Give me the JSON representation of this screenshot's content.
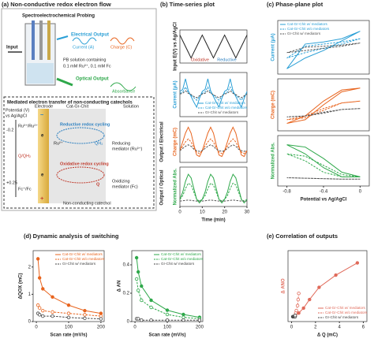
{
  "figure": {
    "titles": [
      "(a) Non-conductive redox electron flow",
      "(b) Time-series plot",
      "(c) Phase-plane plot",
      "(d) Dynamic analysis of switching",
      "(e) Correlation of outputs"
    ],
    "panel_a": {
      "heading": "Spectroelectrochemical Probing",
      "input": "Input",
      "electrical_output": "Electrical Output",
      "current": "Current (A)",
      "charge": "Charge (C)",
      "solution_1": "PB solution containing",
      "solution_2": "0.1 mM Ru³⁺, 0.1 mM Fc",
      "optical_output": "Optical Output",
      "absorbance": "Absorbance",
      "box_title": "Mediated electron transfer of non-conducting catechols",
      "potential_1": "Potential (V)",
      "potential_2": "vs Ag/AgCl",
      "electrode": "Electrode",
      "film": "Cat-Gr-Chit",
      "solution": "Solution",
      "level_1": "-0.2",
      "level_2": "+0.25",
      "couple_1": "Ru³⁺/Ru²⁺",
      "couple_2": "Q/QH₂",
      "couple_3": "Fc⁺/Fc",
      "reductive": "Reductive redox cycling",
      "oxidative": "Oxidative redox cycling",
      "ru2": "Ru²⁺",
      "qh2": "QH₂",
      "q": "Q",
      "reducing_1": "Reducing",
      "reducing_2": "mediator (Ru³⁺)",
      "oxidizing_1": "Oxidizing",
      "oxidizing_2": "mediator (Fc)",
      "catechol": "Non-conducting catechol",
      "e1": "e",
      "e2": "e",
      "minus": "−",
      "plus": "+"
    },
    "side_labels": [
      "Output / Electrical",
      "Output / Optical"
    ]
  },
  "chart_data": [
    {
      "type": "line",
      "ylabel": "Input E(V) vs Ag/AgCl",
      "annotations": [
        "Oxidative",
        "Reductive"
      ],
      "x": [
        0,
        1.25,
        2.5,
        3.75,
        5,
        6.25,
        7.5,
        8.75,
        10,
        11.25,
        12.5,
        13.75,
        15,
        16.25,
        17.5,
        18.75,
        20,
        21.25,
        22.5,
        23.75,
        25,
        26.25,
        27.5,
        28.75,
        30
      ],
      "xlim": [
        0,
        30
      ],
      "ylim": [
        -0.6,
        0.7
      ],
      "series": [
        {
          "color": "#222",
          "values": [
            0.5,
            0.275,
            0.05,
            -0.175,
            -0.4,
            -0.175,
            0.05,
            0.275,
            0.5,
            0.275,
            0.05,
            -0.175,
            -0.4,
            -0.175,
            0.05,
            0.275,
            0.5,
            0.275,
            0.05,
            -0.175,
            -0.4,
            -0.175,
            0.05,
            0.275,
            0.5
          ]
        }
      ]
    },
    {
      "type": "line",
      "ylabel": "Current (μA)",
      "legend": "lower right",
      "x": [
        0,
        1.25,
        2.5,
        3.75,
        5,
        6.25,
        7.5,
        8.75,
        10,
        11.25,
        12.5,
        13.75,
        15,
        16.25,
        17.5,
        18.75,
        20,
        21.25,
        22.5,
        23.75,
        25,
        26.25,
        27.5,
        28.75,
        30
      ],
      "xlim": [
        0,
        30
      ],
      "ylim": [
        -3.5,
        3.5
      ],
      "series": [
        {
          "name": "Cat-Gr-Chit w/ mediators",
          "color": "#2a9fd6",
          "values": [
            0.5,
            0.8,
            2.5,
            0.6,
            -0.3,
            -1.2,
            -2,
            -0.6,
            0.5,
            0.8,
            2.5,
            0.6,
            -0.3,
            -1.2,
            -2,
            -0.6,
            0.5,
            0.8,
            2.5,
            0.6,
            -0.3,
            -1.2,
            -2,
            -0.6,
            0.5
          ]
        },
        {
          "name": "Cat-Gr-Chit w/o mediators",
          "color": "#2a9fd6",
          "dash": true,
          "values": [
            0.2,
            0.4,
            1.2,
            0.3,
            -0.1,
            -0.5,
            -0.9,
            -0.3,
            0.2,
            0.4,
            1.2,
            0.3,
            -0.1,
            -0.5,
            -0.9,
            -0.3,
            0.2,
            0.4,
            1.2,
            0.3,
            -0.1,
            -0.5,
            -0.9,
            -0.3,
            0.2
          ]
        },
        {
          "name": "Gr-Chit w/ mediators",
          "color": "#555",
          "dash": true,
          "values": [
            0.1,
            0.2,
            0.6,
            0.2,
            0,
            -0.3,
            -0.5,
            -0.2,
            0.1,
            0.2,
            0.6,
            0.2,
            0,
            -0.3,
            -0.5,
            -0.2,
            0.1,
            0.2,
            0.6,
            0.2,
            0,
            -0.3,
            -0.5,
            -0.2,
            0.1
          ]
        }
      ]
    },
    {
      "type": "line",
      "ylabel": "Charge (mC)",
      "x": [
        0,
        1.25,
        2.5,
        3.75,
        5,
        6.25,
        7.5,
        8.75,
        10,
        11.25,
        12.5,
        13.75,
        15,
        16.25,
        17.5,
        18.75,
        20,
        21.25,
        22.5,
        23.75,
        25,
        26.25,
        27.5,
        28.75,
        30
      ],
      "xlim": [
        0,
        30
      ],
      "ylim": [
        -0.8,
        2
      ],
      "series": [
        {
          "color": "#e8641e",
          "values": [
            0,
            0.6,
            1.2,
            1.6,
            1.2,
            0.4,
            -0.3,
            -0.4,
            0,
            0.6,
            1.2,
            1.6,
            1.2,
            0.4,
            -0.3,
            -0.4,
            0,
            0.6,
            1.2,
            1.6,
            1.2,
            0.4,
            -0.3,
            -0.4,
            0
          ]
        },
        {
          "color": "#e8641e",
          "dash": true,
          "values": [
            0,
            0.3,
            0.6,
            0.8,
            0.6,
            0.2,
            -0.1,
            -0.2,
            0,
            0.3,
            0.6,
            0.8,
            0.6,
            0.2,
            -0.1,
            -0.2,
            0,
            0.3,
            0.6,
            0.8,
            0.6,
            0.2,
            -0.1,
            -0.2,
            0
          ]
        },
        {
          "color": "#555",
          "dash": true,
          "values": [
            0,
            0.15,
            0.3,
            0.4,
            0.3,
            0.1,
            0,
            -0.05,
            0,
            0.15,
            0.3,
            0.4,
            0.3,
            0.1,
            0,
            -0.05,
            0,
            0.15,
            0.3,
            0.4,
            0.3,
            0.1,
            0,
            -0.05,
            0
          ]
        }
      ]
    },
    {
      "type": "line",
      "ylabel": "Normalized Abs.",
      "xlabel": "Time (min)",
      "xticks": [
        0,
        10,
        20,
        30
      ],
      "x": [
        0,
        1.25,
        2.5,
        3.75,
        5,
        6.25,
        7.5,
        8.75,
        10,
        11.25,
        12.5,
        13.75,
        15,
        16.25,
        17.5,
        18.75,
        20,
        21.25,
        22.5,
        23.75,
        25,
        26.25,
        27.5,
        28.75,
        30
      ],
      "xlim": [
        0,
        30
      ],
      "ylim": [
        -0.1,
        1
      ],
      "series": [
        {
          "color": "#2ea84a",
          "values": [
            0.1,
            0.3,
            0.6,
            0.8,
            0.7,
            0.4,
            0.1,
            0,
            0.1,
            0.3,
            0.6,
            0.8,
            0.7,
            0.4,
            0.1,
            0,
            0.1,
            0.3,
            0.6,
            0.8,
            0.7,
            0.4,
            0.1,
            0,
            0.1
          ]
        },
        {
          "color": "#2ea84a",
          "dash": true,
          "values": [
            0.1,
            0.2,
            0.4,
            0.55,
            0.5,
            0.3,
            0.1,
            0.05,
            0.1,
            0.2,
            0.4,
            0.55,
            0.5,
            0.3,
            0.1,
            0.05,
            0.1,
            0.2,
            0.4,
            0.55,
            0.5,
            0.3,
            0.1,
            0.05,
            0.1
          ]
        },
        {
          "color": "#555",
          "dash": true,
          "values": [
            0.05,
            0.06,
            0.07,
            0.08,
            0.07,
            0.06,
            0.05,
            0.05,
            0.05,
            0.06,
            0.07,
            0.08,
            0.07,
            0.06,
            0.05,
            0.05,
            0.05,
            0.06,
            0.07,
            0.08,
            0.07,
            0.06,
            0.05,
            0.05,
            0.05
          ]
        }
      ]
    },
    {
      "type": "line",
      "ylabel": "Current (μA)",
      "legend": "upper left",
      "x": [
        0,
        -0.2,
        -0.4,
        -0.6,
        -0.8,
        -0.6,
        -0.4,
        -0.2,
        0
      ],
      "xlim": [
        -0.9,
        0.1
      ],
      "ylim": [
        -2.5,
        2.5
      ],
      "series": [
        {
          "name": "Cat-Gr-Chit w/ mediators",
          "color": "#2a9fd6",
          "values": [
            1.5,
            0.8,
            0.5,
            0.3,
            -2,
            -1,
            -0.3,
            0.6,
            1.5
          ]
        },
        {
          "name": "Cat-Gr-Chit w/o mediators",
          "color": "#2a9fd6",
          "dash": true,
          "values": [
            0.8,
            0.5,
            0.3,
            0.1,
            -1,
            -0.5,
            -0.1,
            0.3,
            0.8
          ]
        },
        {
          "name": "Gr-Chit w/ mediators",
          "color": "#555",
          "dash": true,
          "values": [
            0.4,
            0.2,
            0.1,
            0,
            -0.5,
            -0.3,
            -0.1,
            0.1,
            0.4
          ]
        }
      ]
    },
    {
      "type": "line",
      "ylabel": "Charge (mC)",
      "x": [
        0,
        -0.2,
        -0.4,
        -0.6,
        -0.8,
        -0.6,
        -0.4,
        -0.2,
        0
      ],
      "xlim": [
        -0.9,
        0.1
      ],
      "ylim": [
        -0.8,
        2
      ],
      "series": [
        {
          "color": "#e8641e",
          "values": [
            1.5,
            1.3,
            0.6,
            -0.2,
            -0.4,
            0,
            0.8,
            1.4,
            1.5
          ]
        },
        {
          "color": "#e8641e",
          "dash": true,
          "values": [
            0.8,
            0.7,
            0.3,
            -0.1,
            -0.2,
            0,
            0.4,
            0.7,
            0.8
          ]
        },
        {
          "color": "#555",
          "dash": true,
          "values": [
            0.4,
            0.35,
            0.15,
            0,
            -0.05,
            0,
            0.2,
            0.35,
            0.4
          ]
        }
      ]
    },
    {
      "type": "line",
      "ylabel": "Normalized Abs.",
      "xlabel": "Potential vs Ag/AgCl",
      "xticks": [
        -0.8,
        -0.4,
        0
      ],
      "x": [
        0,
        -0.2,
        -0.4,
        -0.6,
        -0.8,
        -0.6,
        -0.4,
        -0.2,
        0
      ],
      "xlim": [
        -0.9,
        0.1
      ],
      "ylim": [
        -0.1,
        1
      ],
      "series": [
        {
          "color": "#2ea84a",
          "values": [
            0.1,
            0.2,
            0.5,
            0.75,
            0.8,
            0.6,
            0.3,
            0.1,
            0.1
          ]
        },
        {
          "color": "#2ea84a",
          "dash": true,
          "values": [
            0.1,
            0.15,
            0.35,
            0.55,
            0.6,
            0.45,
            0.2,
            0.1,
            0.1
          ]
        },
        {
          "color": "#555",
          "dash": true,
          "values": [
            0.05,
            0.05,
            0.06,
            0.07,
            0.08,
            0.07,
            0.06,
            0.05,
            0.05
          ]
        }
      ]
    },
    {
      "type": "line",
      "markers": true,
      "ylabel": "ΔQOX (mC)",
      "xlabel": "Scan rate (mV/s)",
      "legend": "upper right",
      "x": [
        5,
        10,
        20,
        50,
        100,
        150,
        200
      ],
      "xlim": [
        -10,
        210
      ],
      "xticks": [
        0,
        100,
        200
      ],
      "ylim": [
        0,
        2.6
      ],
      "yticks": [
        0,
        1,
        2
      ],
      "series": [
        {
          "name": "Cat-Gr-Chit w/ mediators",
          "color": "#e8641e",
          "values": [
            2.3,
            1.6,
            1.2,
            0.9,
            0.6,
            0.4,
            0.3
          ]
        },
        {
          "name": "Cat-Gr-Chit w/o mediators",
          "color": "#e8641e",
          "dash": true,
          "values": [
            0.6,
            0.5,
            0.4,
            0.35,
            0.3,
            0.25,
            0.2
          ]
        },
        {
          "name": "Gr-Chit w/ mediators",
          "color": "#444",
          "dash": true,
          "values": [
            0.3,
            0.25,
            0.2,
            0.2,
            0.15,
            0.12,
            0.1
          ]
        }
      ]
    },
    {
      "type": "line",
      "markers": true,
      "ylabel": "Δ AN",
      "xlabel": "Scan rate (mV/s)",
      "legend": "upper right",
      "x": [
        5,
        10,
        20,
        50,
        100,
        150,
        200
      ],
      "xlim": [
        -10,
        210
      ],
      "xticks": [
        0,
        100,
        200
      ],
      "ylim": [
        0,
        0.5
      ],
      "yticks": [
        0,
        0.2,
        0.4
      ],
      "series": [
        {
          "name": "Cat-Gr-Chit w/ mediators",
          "color": "#2ea84a",
          "values": [
            0.45,
            0.35,
            0.25,
            0.15,
            0.08,
            0.05,
            0.03
          ]
        },
        {
          "name": "Cat-Gr-Chit w/o mediators",
          "color": "#2ea84a",
          "dash": true,
          "values": [
            0.3,
            0.22,
            0.15,
            0.1,
            0.05,
            0.03,
            0.02
          ]
        },
        {
          "name": "Gr-Chit w/ mediators",
          "color": "#444",
          "dash": true,
          "values": [
            0.02,
            0.02,
            0.01,
            0.01,
            0.01,
            0.01,
            0.01
          ]
        }
      ]
    },
    {
      "type": "line",
      "markers": true,
      "ylabel": "Δ ANO",
      "xlabel": "Δ Q (mC)",
      "legend": "lower right",
      "xlim": [
        -0.3,
        6.3
      ],
      "xticks": [
        0,
        2,
        4,
        6
      ],
      "ylim": [
        -0.03,
        0.55
      ],
      "series": [
        {
          "name": "Cat-Gr-Chit w/ mediators",
          "color": "#e06a5a",
          "x": [
            0.3,
            0.6,
            1,
            1.5,
            2.3,
            3.7,
            5.5
          ],
          "values": [
            0.02,
            0.04,
            0.08,
            0.15,
            0.25,
            0.35,
            0.45
          ]
        },
        {
          "name": "Cat-Gr-Chit w/o mediators",
          "color": "#e06a5a",
          "dash": true,
          "x": [
            0.2,
            0.3,
            0.35,
            0.4,
            0.5,
            0.55,
            0.6
          ],
          "values": [
            0.01,
            0.02,
            0.04,
            0.06,
            0.1,
            0.15,
            0.2
          ]
        },
        {
          "name": "Gr-Chit w/ mediators",
          "color": "#444",
          "dash": true,
          "x": [
            0.1,
            0.12,
            0.15,
            0.2,
            0.25,
            0.3,
            0.3
          ],
          "values": [
            0.01,
            0.01,
            0.01,
            0.01,
            0.01,
            0.01,
            0.02
          ]
        }
      ]
    }
  ]
}
